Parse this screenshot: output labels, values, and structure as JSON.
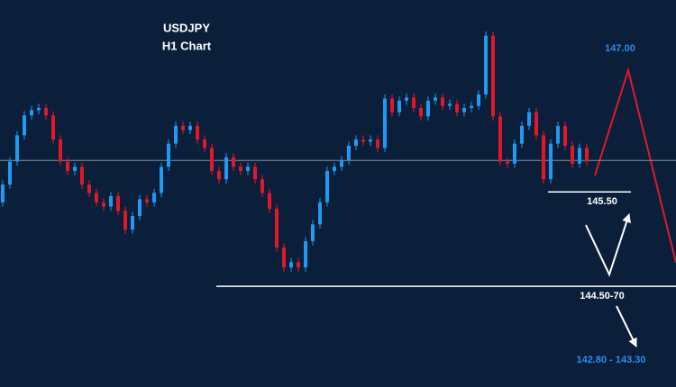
{
  "chart_data": {
    "type": "candlestick",
    "title": "USDJPY",
    "subtitle": "H1 Chart",
    "open": [
      145.4,
      145.57,
      145.79,
      146.04,
      146.23,
      146.28,
      146.3,
      146.23,
      146.0,
      145.79,
      145.7,
      145.74,
      145.57,
      145.49,
      145.4,
      145.36,
      145.46,
      145.32,
      145.14,
      145.27,
      145.43,
      145.4,
      145.49,
      145.74,
      145.96,
      146.13,
      146.09,
      146.13,
      146.0,
      145.92,
      145.7,
      145.62,
      145.83,
      145.74,
      145.7,
      145.74,
      145.62,
      145.49,
      145.34,
      144.97,
      144.78,
      144.83,
      144.78,
      145.03,
      145.19,
      145.4,
      145.7,
      145.74,
      145.8,
      145.94,
      146.0,
      145.98,
      146.0,
      145.92,
      146.39,
      146.26,
      146.37,
      146.4,
      146.3,
      146.22,
      146.37,
      146.4,
      146.32,
      146.34,
      146.26,
      146.3,
      146.32,
      146.43,
      146.99,
      146.22,
      145.79,
      145.77,
      145.96,
      146.13,
      146.26,
      146.04,
      145.62,
      145.96,
      146.13,
      145.94,
      145.77,
      145.92
    ],
    "high": [
      145.61,
      145.83,
      146.08,
      146.27,
      146.32,
      146.34,
      146.34,
      146.27,
      146.04,
      145.83,
      145.78,
      145.78,
      145.61,
      145.53,
      145.44,
      145.5,
      145.5,
      145.36,
      145.31,
      145.47,
      145.47,
      145.53,
      145.78,
      146.0,
      146.17,
      146.17,
      146.17,
      146.17,
      146.04,
      145.96,
      145.74,
      145.87,
      145.87,
      145.78,
      145.78,
      145.78,
      145.66,
      145.53,
      145.38,
      145.01,
      144.87,
      144.87,
      145.07,
      145.23,
      145.44,
      145.74,
      145.78,
      145.84,
      145.98,
      146.04,
      146.04,
      146.04,
      146.04,
      146.43,
      146.43,
      146.41,
      146.44,
      146.44,
      146.34,
      146.41,
      146.44,
      146.44,
      146.38,
      146.38,
      146.34,
      146.36,
      146.47,
      147.03,
      147.03,
      146.26,
      145.83,
      146.0,
      146.17,
      146.3,
      146.3,
      146.08,
      146.0,
      146.17,
      146.17,
      145.98,
      145.96,
      145.96
    ],
    "low": [
      145.36,
      145.53,
      145.75,
      146.0,
      146.19,
      146.24,
      146.19,
      145.96,
      145.75,
      145.66,
      145.66,
      145.53,
      145.45,
      145.36,
      145.32,
      145.32,
      145.28,
      145.1,
      145.1,
      145.23,
      145.36,
      145.36,
      145.45,
      145.7,
      145.92,
      146.05,
      146.05,
      145.96,
      145.88,
      145.66,
      145.58,
      145.58,
      145.7,
      145.66,
      145.66,
      145.58,
      145.45,
      145.3,
      144.93,
      144.74,
      144.74,
      144.74,
      144.74,
      144.99,
      145.15,
      145.36,
      145.66,
      145.7,
      145.76,
      145.9,
      145.94,
      145.94,
      145.88,
      145.88,
      146.22,
      146.22,
      146.33,
      146.26,
      146.18,
      146.18,
      146.33,
      146.28,
      146.28,
      146.22,
      146.22,
      146.26,
      146.28,
      146.39,
      146.18,
      145.75,
      145.73,
      145.73,
      145.92,
      146.09,
      146.0,
      145.58,
      145.58,
      145.92,
      145.9,
      145.73,
      145.73,
      145.75
    ],
    "close": [
      145.57,
      145.79,
      146.04,
      146.23,
      146.28,
      146.3,
      146.23,
      146.0,
      145.79,
      145.7,
      145.74,
      145.57,
      145.49,
      145.4,
      145.36,
      145.46,
      145.32,
      145.14,
      145.27,
      145.43,
      145.4,
      145.49,
      145.74,
      145.96,
      146.13,
      146.09,
      146.13,
      146.0,
      145.92,
      145.7,
      145.62,
      145.83,
      145.74,
      145.7,
      145.74,
      145.62,
      145.49,
      145.34,
      144.97,
      144.78,
      144.83,
      144.78,
      145.03,
      145.19,
      145.4,
      145.7,
      145.74,
      145.8,
      145.94,
      146.0,
      145.98,
      146.0,
      145.92,
      146.39,
      146.26,
      146.37,
      146.4,
      146.3,
      146.22,
      146.37,
      146.4,
      146.32,
      146.34,
      146.26,
      146.3,
      146.32,
      146.43,
      146.99,
      146.22,
      145.79,
      145.77,
      145.96,
      146.13,
      146.26,
      146.04,
      145.62,
      145.96,
      146.13,
      145.94,
      145.77,
      145.92,
      145.79
    ],
    "ylim": [
      143.64,
      147.33
    ],
    "up_color": "#1e9af0",
    "down_color": "#e0182c",
    "reference_line": 145.8,
    "levels": [
      {
        "value": 145.5,
        "label": "145.50"
      },
      {
        "value": 144.6,
        "label": "144.50-70"
      }
    ],
    "annotations": [
      "147.00",
      "142.80 - 143.30"
    ]
  }
}
